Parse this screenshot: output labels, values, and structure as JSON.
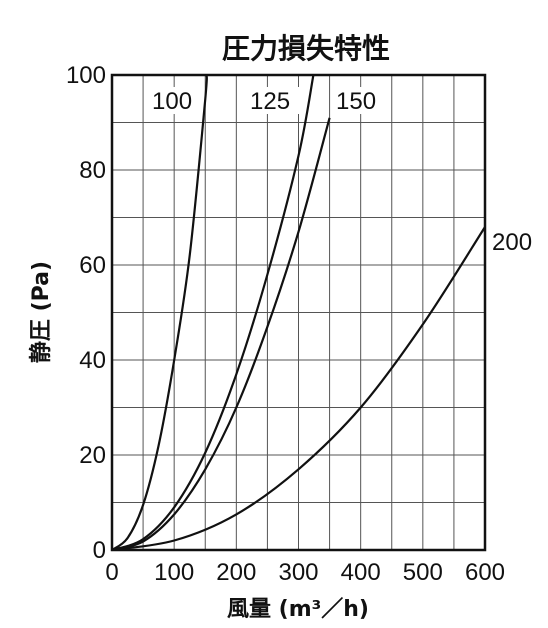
{
  "chart_data": {
    "type": "line",
    "title": "圧力損失特性",
    "xlabel": "風量 (m³／h)",
    "ylabel": "静圧 (Pa)",
    "xlim": [
      0,
      600
    ],
    "ylim": [
      0,
      100
    ],
    "xticks": [
      "0",
      "100",
      "200",
      "300",
      "400",
      "500",
      "600"
    ],
    "yticks": [
      "0",
      "20",
      "40",
      "60",
      "80",
      "100"
    ],
    "grid": true,
    "series": [
      {
        "name": "100",
        "x": [
          0,
          25,
          50,
          75,
          100,
          125,
          150,
          152
        ],
        "y": [
          0,
          2.5,
          9.5,
          22,
          40,
          62,
          95,
          100
        ]
      },
      {
        "name": "125",
        "x": [
          0,
          50,
          100,
          150,
          200,
          250,
          300,
          324
        ],
        "y": [
          0,
          2.3,
          9,
          20.5,
          37,
          58,
          83,
          100
        ]
      },
      {
        "name": "150",
        "x": [
          0,
          50,
          100,
          150,
          200,
          250,
          300,
          350
        ],
        "y": [
          0,
          1.8,
          7.5,
          17,
          30,
          47,
          67,
          91
        ]
      },
      {
        "name": "200",
        "x": [
          0,
          100,
          200,
          300,
          400,
          500,
          600
        ],
        "y": [
          0,
          2,
          7.5,
          17,
          30,
          47.5,
          68
        ]
      }
    ]
  }
}
